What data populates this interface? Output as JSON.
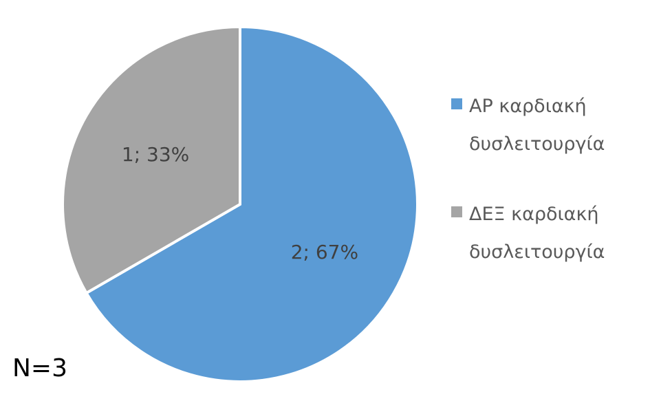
{
  "chart_data": {
    "type": "pie",
    "categories": [
      "ΑΡ καρδιακή δυσλειτουργία",
      "ΔΕΞ καρδιακή δυσλειτουργία"
    ],
    "values": [
      2,
      1
    ],
    "value_labels": [
      "2; 67%",
      "1; 33%"
    ],
    "colors": [
      "#5b9bd5",
      "#a5a5a5"
    ],
    "annotation": "N=3"
  }
}
